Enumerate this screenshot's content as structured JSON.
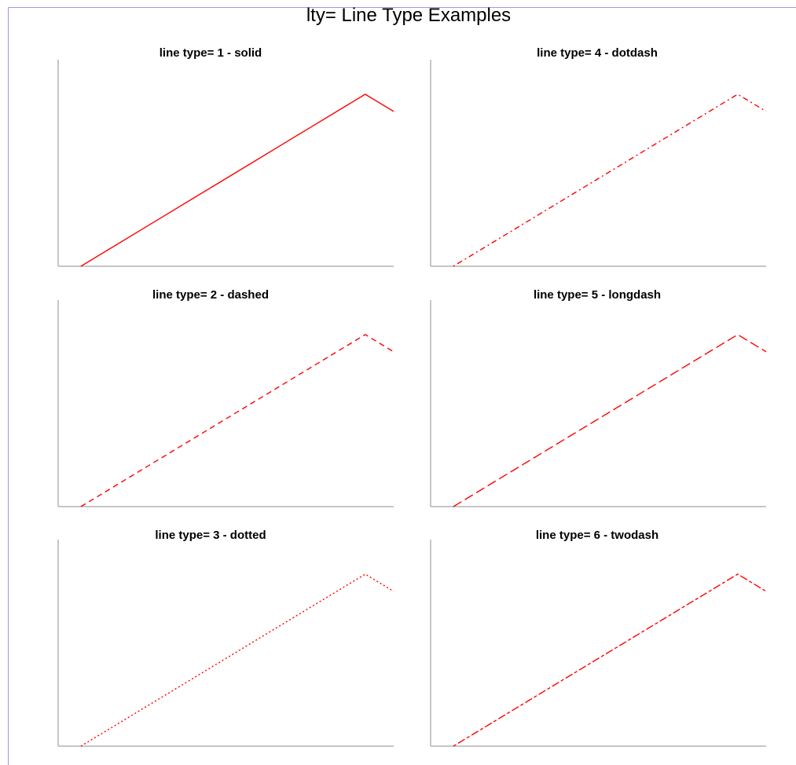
{
  "title": "lty= Line Type Examples",
  "line_color": "#ff0000",
  "axis_color": "#b4b4b4",
  "chart_data": [
    {
      "type": "line",
      "title": "line type= 1  -  solid",
      "lty": "solid",
      "x": [
        1,
        2,
        3,
        4,
        5,
        6,
        7,
        8,
        9,
        10,
        11,
        12
      ],
      "y": [
        0,
        1,
        2,
        3,
        4,
        5,
        6,
        7,
        8,
        9,
        10,
        9
      ]
    },
    {
      "type": "line",
      "title": "line type= 4  -  dotdash",
      "lty": "dotdash",
      "x": [
        1,
        2,
        3,
        4,
        5,
        6,
        7,
        8,
        9,
        10,
        11,
        12
      ],
      "y": [
        0,
        1,
        2,
        3,
        4,
        5,
        6,
        7,
        8,
        9,
        10,
        9
      ]
    },
    {
      "type": "line",
      "title": "line type= 2  -  dashed",
      "lty": "dashed",
      "x": [
        1,
        2,
        3,
        4,
        5,
        6,
        7,
        8,
        9,
        10,
        11,
        12
      ],
      "y": [
        0,
        1,
        2,
        3,
        4,
        5,
        6,
        7,
        8,
        9,
        10,
        9
      ]
    },
    {
      "type": "line",
      "title": "line type= 5  -  longdash",
      "lty": "longdash",
      "x": [
        1,
        2,
        3,
        4,
        5,
        6,
        7,
        8,
        9,
        10,
        11,
        12
      ],
      "y": [
        0,
        1,
        2,
        3,
        4,
        5,
        6,
        7,
        8,
        9,
        10,
        9
      ]
    },
    {
      "type": "line",
      "title": "line type= 3  -  dotted",
      "lty": "dotted",
      "x": [
        1,
        2,
        3,
        4,
        5,
        6,
        7,
        8,
        9,
        10,
        11,
        12
      ],
      "y": [
        0,
        1,
        2,
        3,
        4,
        5,
        6,
        7,
        8,
        9,
        10,
        9
      ]
    },
    {
      "type": "line",
      "title": "line type= 6  -  twodash",
      "lty": "twodash",
      "x": [
        1,
        2,
        3,
        4,
        5,
        6,
        7,
        8,
        9,
        10,
        11,
        12
      ],
      "y": [
        0,
        1,
        2,
        3,
        4,
        5,
        6,
        7,
        8,
        9,
        10,
        9
      ]
    }
  ]
}
